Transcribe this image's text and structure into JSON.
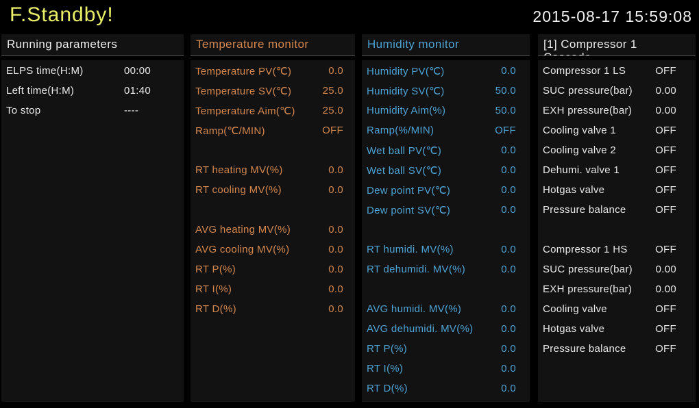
{
  "header": {
    "status_title": "F.Standby!",
    "datetime": "2015-08-17 15:59:08"
  },
  "colors": {
    "background": "#000000",
    "panel_background": "#121212",
    "title_yellow": "#e9ee66",
    "white_text": "#e9e9e9",
    "temperature_orange": "#d5884e",
    "humidity_blue": "#4da3d4",
    "header_divider": "#4f4f4f"
  },
  "panels": [
    {
      "id": "running-parameters",
      "title": "Running parameters",
      "accent": "#e9e9e9",
      "rows": [
        {
          "label": "ELPS time(H:M)",
          "value": "00:00"
        },
        {
          "label": "Left time(H:M)",
          "value": "01:40"
        },
        {
          "label": "To stop",
          "value": "----"
        }
      ]
    },
    {
      "id": "temperature-monitor",
      "title": "Temperature monitor",
      "accent": "#d5884e",
      "rows": [
        {
          "label": "Temperature PV(℃)",
          "value": "0.0"
        },
        {
          "label": "Temperature SV(℃)",
          "value": "25.0"
        },
        {
          "label": "Temperature Aim(℃)",
          "value": "25.0"
        },
        {
          "label": "Ramp(℃/MIN)",
          "value": "OFF"
        },
        {
          "label": "",
          "value": ""
        },
        {
          "label": "RT heating MV(%)",
          "value": "0.0"
        },
        {
          "label": "RT cooling MV(%)",
          "value": "0.0"
        },
        {
          "label": "",
          "value": ""
        },
        {
          "label": "AVG heating MV(%)",
          "value": "0.0"
        },
        {
          "label": "AVG cooling MV(%)",
          "value": "0.0"
        },
        {
          "label": "RT P(%)",
          "value": "0.0"
        },
        {
          "label": "RT I(%)",
          "value": "0.0"
        },
        {
          "label": "RT D(%)",
          "value": "0.0"
        }
      ]
    },
    {
      "id": "humidity-monitor",
      "title": "Humidity monitor",
      "accent": "#4da3d4",
      "rows": [
        {
          "label": "Humidity PV(℃)",
          "value": "0.0"
        },
        {
          "label": "Humidity SV(℃)",
          "value": "50.0"
        },
        {
          "label": "Humidity Aim(%)",
          "value": "50.0"
        },
        {
          "label": "Ramp(%/MIN)",
          "value": "OFF"
        },
        {
          "label": "Wet ball PV(℃)",
          "value": "0.0"
        },
        {
          "label": "Wet ball SV(℃)",
          "value": "0.0"
        },
        {
          "label": "Dew point PV(℃)",
          "value": "0.0"
        },
        {
          "label": "Dew point SV(℃)",
          "value": "0.0"
        },
        {
          "label": "",
          "value": ""
        },
        {
          "label": "RT humidi. MV(%)",
          "value": "0.0"
        },
        {
          "label": "RT dehumidi. MV(%)",
          "value": "0.0"
        },
        {
          "label": "",
          "value": ""
        },
        {
          "label": "AVG humidi. MV(%)",
          "value": "0.0"
        },
        {
          "label": "AVG dehumidi. MV(%)",
          "value": "0.0"
        },
        {
          "label": "RT P(%)",
          "value": "0.0"
        },
        {
          "label": "RT I(%)",
          "value": "0.0"
        },
        {
          "label": "RT D(%)",
          "value": "0.0"
        }
      ]
    },
    {
      "id": "compressor-1-cascade",
      "title": "[1] Compressor 1",
      "title_line2": "Cascade",
      "accent": "#e9e9e9",
      "rows": [
        {
          "label": "Compressor 1 LS",
          "value": "OFF"
        },
        {
          "label": "SUC pressure(bar)",
          "value": "0.00"
        },
        {
          "label": "EXH pressure(bar)",
          "value": "0.00"
        },
        {
          "label": "Cooling valve 1",
          "value": "OFF"
        },
        {
          "label": "Cooling valve 2",
          "value": "OFF"
        },
        {
          "label": "Dehumi. valve 1",
          "value": "OFF"
        },
        {
          "label": "Hotgas valve",
          "value": "OFF"
        },
        {
          "label": "Pressure balance",
          "value": "OFF"
        },
        {
          "label": "",
          "value": ""
        },
        {
          "label": "Compressor 1 HS",
          "value": "OFF"
        },
        {
          "label": "SUC pressure(bar)",
          "value": "0.00"
        },
        {
          "label": "EXH pressure(bar)",
          "value": "0.00"
        },
        {
          "label": "Cooling valve",
          "value": "OFF"
        },
        {
          "label": "Hotgas valve",
          "value": "OFF"
        },
        {
          "label": "Pressure balance",
          "value": "OFF"
        }
      ]
    }
  ]
}
